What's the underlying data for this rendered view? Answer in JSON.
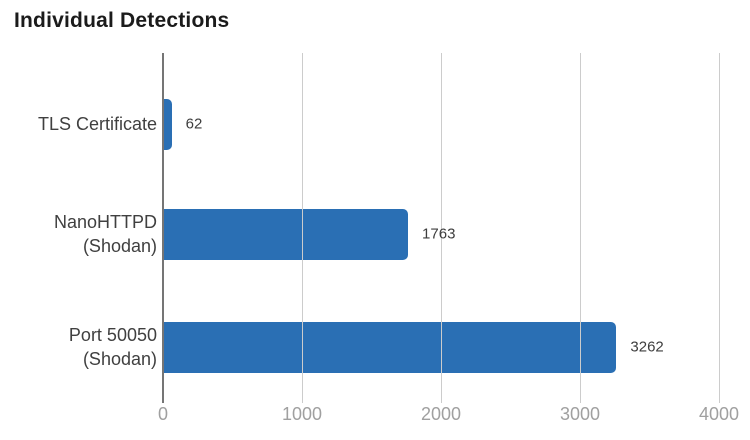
{
  "chart_data": {
    "type": "bar",
    "orientation": "horizontal",
    "title": "Individual Detections",
    "categories": [
      "TLS Certificate",
      "NanoHTTPD\n(Shodan)",
      "Port 50050\n(Shodan)"
    ],
    "values": [
      62,
      1763,
      3262
    ],
    "value_labels": [
      "62",
      "1763",
      "3262"
    ],
    "x_ticks": [
      0,
      1000,
      2000,
      3000,
      4000
    ],
    "x_tick_labels": [
      "0",
      "1000",
      "2000",
      "3000",
      "4000"
    ],
    "xlim": [
      0,
      4000
    ],
    "grid": true,
    "legend": false,
    "gridlines_over_bars": true,
    "colors": {
      "bar": "#2a6fb4",
      "gridline": "#cccccc",
      "zero_axis": "#757575",
      "tick_label": "#a0a0a0",
      "category_label": "#404040",
      "value_label": "#3d3d3d",
      "title": "#1b1b1b",
      "background": "#ffffff"
    }
  }
}
